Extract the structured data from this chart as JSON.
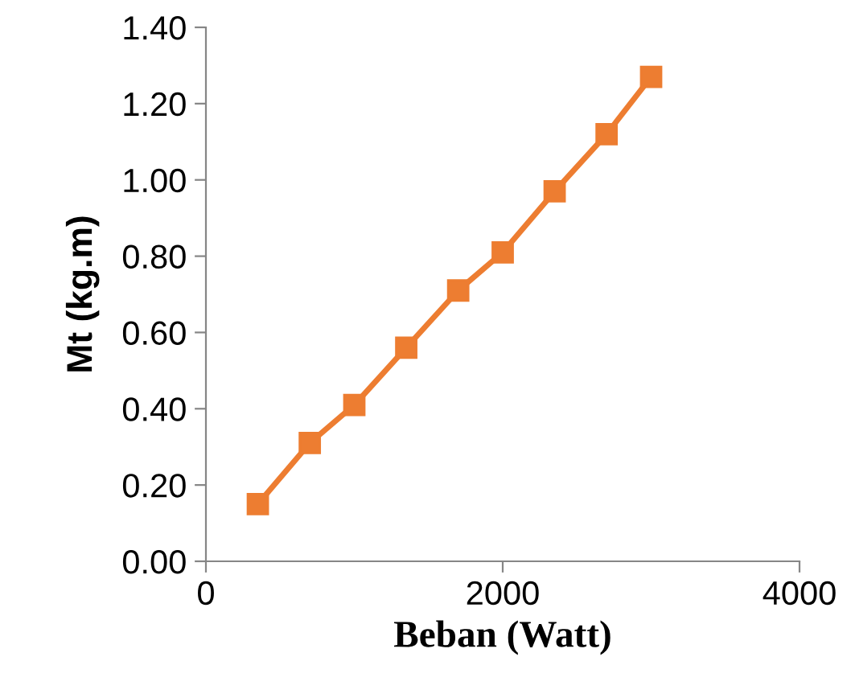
{
  "chart_data": {
    "type": "line",
    "xlabel": "Beban (Watt)",
    "ylabel": "Mt (kg.m)",
    "x": [
      350,
      700,
      1000,
      1350,
      1700,
      2000,
      2350,
      2700,
      3000
    ],
    "series": [
      {
        "color": "#ed7d31",
        "values": [
          0.15,
          0.31,
          0.41,
          0.56,
          0.71,
          0.81,
          0.97,
          1.12,
          1.27
        ]
      }
    ],
    "xlim": [
      0,
      4000
    ],
    "xticks": [
      0,
      2000,
      4000
    ],
    "ylim": [
      0,
      1.4
    ],
    "yticks": [
      {
        "value": 0,
        "label": "0.00"
      },
      {
        "value": 0.2,
        "label": "0.20"
      },
      {
        "value": 0.4,
        "label": "0.40"
      },
      {
        "value": 0.6,
        "label": "0.60"
      },
      {
        "value": 0.8,
        "label": "0.80"
      },
      {
        "value": 1.0,
        "label": "1.00"
      },
      {
        "value": 1.2,
        "label": "1.20"
      },
      {
        "value": 1.4,
        "label": "1.40"
      }
    ],
    "marker": "square",
    "line_style": "solid",
    "grid": false,
    "legend": false
  }
}
